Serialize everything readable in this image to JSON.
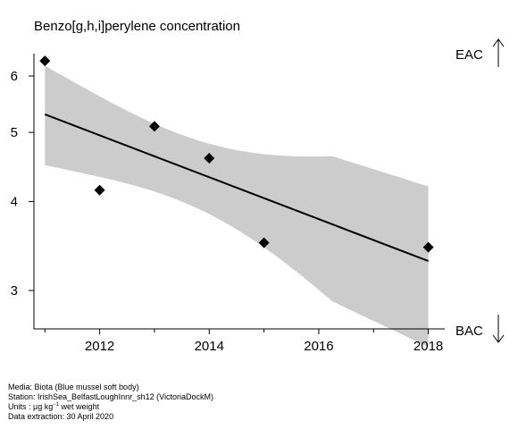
{
  "chart_data": {
    "type": "scatter",
    "title": "Benzo[g,h,i]perylene concentration",
    "xlabel": "",
    "ylabel": "",
    "y_scale": "log",
    "xlim": [
      2010.8,
      2018.3
    ],
    "ylim": [
      2.65,
      6.45
    ],
    "x_ticks": [
      2012,
      2014,
      2016,
      2018
    ],
    "x_tick_labels": [
      "2012",
      "2014",
      "2016",
      "2018"
    ],
    "x_minor_ticks": [
      2011,
      2013,
      2015,
      2017
    ],
    "y_ticks": [
      3,
      4,
      5,
      6
    ],
    "y_tick_labels": [
      "3",
      "4",
      "5",
      "6"
    ],
    "grid": false,
    "series": [
      {
        "x": [
          2011,
          2012,
          2013,
          2014,
          2015,
          2018
        ],
        "y": [
          6.3,
          4.15,
          5.1,
          4.6,
          3.5,
          3.45
        ]
      }
    ],
    "trend": {
      "x": [
        2011,
        2018
      ],
      "y": [
        5.3,
        3.3
      ],
      "lower": [
        4.5,
        2.5
      ],
      "upper": [
        6.2,
        4.2
      ]
    },
    "thresholds": [
      {
        "label": "EAC",
        "arrow": "up"
      },
      {
        "label": "BAC",
        "arrow": "down"
      }
    ],
    "colors": {
      "band": "#cccccc",
      "line": "#000000",
      "points": "#000000"
    }
  },
  "footer": {
    "media": "Media: Biota (Blue mussel soft body)",
    "station": "Station: IrishSea_BelfastLoughInnr_sh12 (VictoriaDockM)",
    "units_prefix": "Units : µg kg",
    "units_exp": "−1",
    "units_suffix": " wet weight",
    "extraction": "Data extraction: 30 April 2020"
  }
}
